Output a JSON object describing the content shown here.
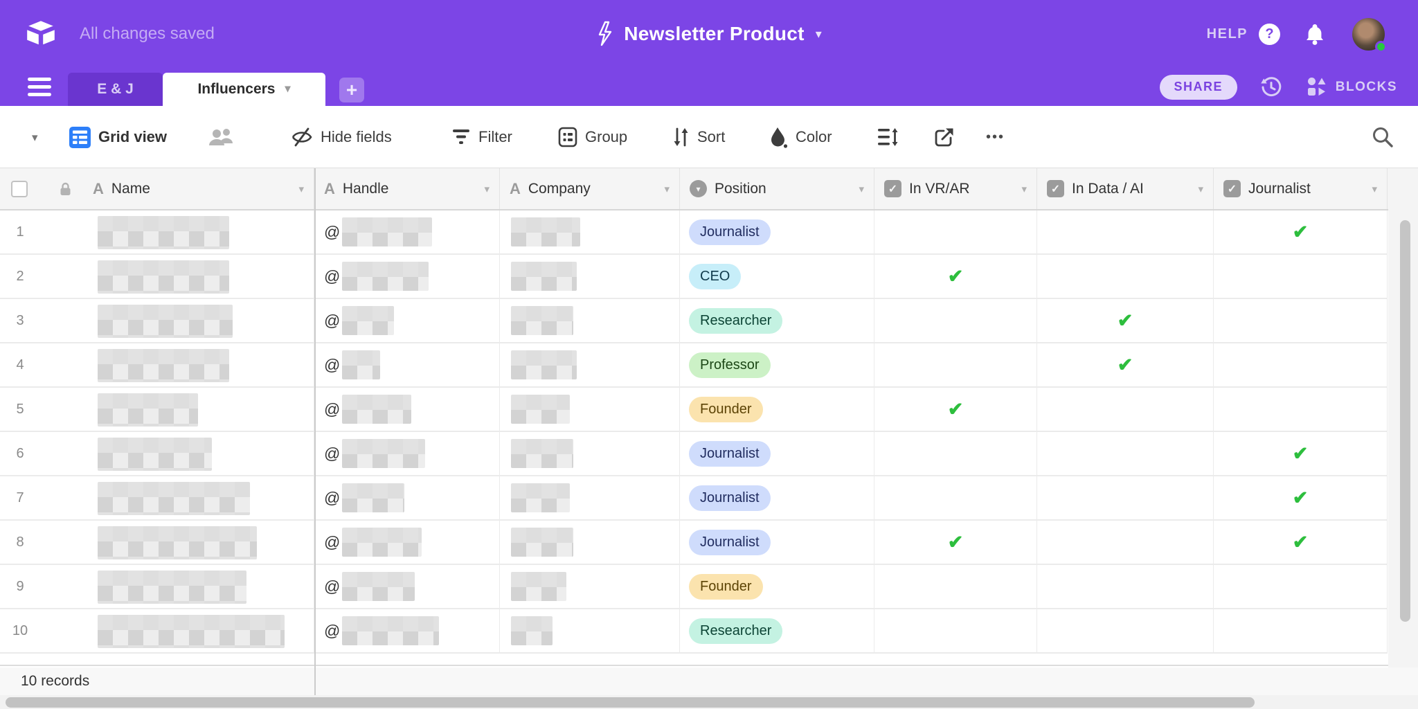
{
  "colors": {
    "accent_purple": "#7c45e6",
    "grid_blue": "#2d7ff9",
    "check_green": "#2dbe3d"
  },
  "icons": {
    "check": "✔",
    "check_small": "✓",
    "caret_down": "▾",
    "plus": "+",
    "ellipsis": "•••",
    "question": "?"
  },
  "topbar": {
    "status": "All changes saved",
    "title": "Newsletter Product",
    "help_label": "HELP"
  },
  "tabbar": {
    "tabs": [
      {
        "label": "E & J",
        "active": false
      },
      {
        "label": "Influencers",
        "active": true
      }
    ],
    "share_label": "SHARE",
    "blocks_label": "BLOCKS"
  },
  "toolbar": {
    "view_name": "Grid view",
    "buttons": [
      "Hide fields",
      "Filter",
      "Group",
      "Sort",
      "Color"
    ]
  },
  "table": {
    "columns": [
      {
        "name": "Name",
        "type": "text"
      },
      {
        "name": "Handle",
        "type": "text"
      },
      {
        "name": "Company",
        "type": "text"
      },
      {
        "name": "Position",
        "type": "select"
      },
      {
        "name": "In VR/AR",
        "type": "checkbox"
      },
      {
        "name": "In Data / AI",
        "type": "checkbox"
      },
      {
        "name": "Journalist",
        "type": "checkbox"
      }
    ],
    "handle_prefix": "@",
    "badge_styles": {
      "Journalist": {
        "bg": "#cfdcfc",
        "text": "#1f2b5e"
      },
      "CEO": {
        "bg": "#c7eef9",
        "text": "#123c4d"
      },
      "Researcher": {
        "bg": "#c4f2e2",
        "text": "#0c4435"
      },
      "Professor": {
        "bg": "#ccf1c6",
        "text": "#1c4716"
      },
      "Founder": {
        "bg": "#fbe3ae",
        "text": "#5c4305"
      }
    },
    "rows": [
      {
        "num": 1,
        "name_redacted_w": 190,
        "handle_redacted_w": 130,
        "company_redacted_w": 100,
        "position": "Journalist",
        "in_vr_ar": false,
        "in_data_ai": false,
        "journalist": true
      },
      {
        "num": 2,
        "name_redacted_w": 190,
        "handle_redacted_w": 125,
        "company_redacted_w": 95,
        "position": "CEO",
        "in_vr_ar": true,
        "in_data_ai": false,
        "journalist": false
      },
      {
        "num": 3,
        "name_redacted_w": 195,
        "handle_redacted_w": 75,
        "company_redacted_w": 90,
        "position": "Researcher",
        "in_vr_ar": false,
        "in_data_ai": true,
        "journalist": false
      },
      {
        "num": 4,
        "name_redacted_w": 190,
        "handle_redacted_w": 55,
        "company_redacted_w": 95,
        "position": "Professor",
        "in_vr_ar": false,
        "in_data_ai": true,
        "journalist": false
      },
      {
        "num": 5,
        "name_redacted_w": 145,
        "handle_redacted_w": 100,
        "company_redacted_w": 85,
        "position": "Founder",
        "in_vr_ar": true,
        "in_data_ai": false,
        "journalist": false
      },
      {
        "num": 6,
        "name_redacted_w": 165,
        "handle_redacted_w": 120,
        "company_redacted_w": 90,
        "position": "Journalist",
        "in_vr_ar": false,
        "in_data_ai": false,
        "journalist": true
      },
      {
        "num": 7,
        "name_redacted_w": 220,
        "handle_redacted_w": 90,
        "company_redacted_w": 85,
        "position": "Journalist",
        "in_vr_ar": false,
        "in_data_ai": false,
        "journalist": true
      },
      {
        "num": 8,
        "name_redacted_w": 230,
        "handle_redacted_w": 115,
        "company_redacted_w": 90,
        "position": "Journalist",
        "in_vr_ar": true,
        "in_data_ai": false,
        "journalist": true
      },
      {
        "num": 9,
        "name_redacted_w": 215,
        "handle_redacted_w": 105,
        "company_redacted_w": 80,
        "position": "Founder",
        "in_vr_ar": false,
        "in_data_ai": false,
        "journalist": false
      },
      {
        "num": 10,
        "name_redacted_w": 270,
        "handle_redacted_w": 140,
        "company_redacted_w": 60,
        "position": "Researcher",
        "in_vr_ar": false,
        "in_data_ai": false,
        "journalist": false
      }
    ]
  },
  "footer": {
    "records_label": "10 records"
  }
}
